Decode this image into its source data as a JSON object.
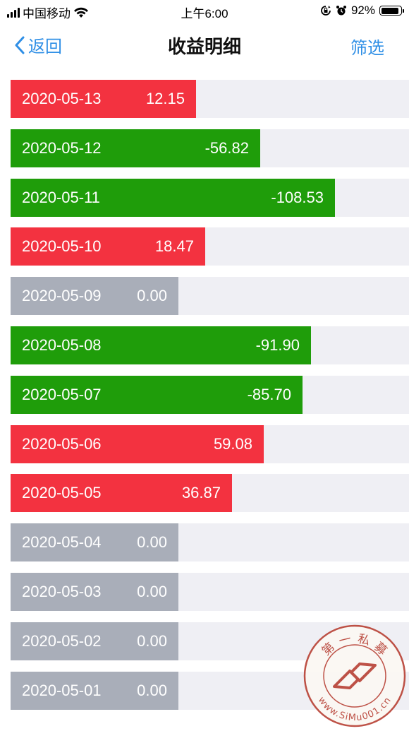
{
  "status": {
    "carrier": "中国移动",
    "time": "上午6:00",
    "battery": "92%",
    "battery_level": 0.92
  },
  "nav": {
    "back_label": "返回",
    "title": "收益明细",
    "filter_label": "筛选"
  },
  "colors": {
    "gain": "#f33240",
    "loss": "#1f9d0a",
    "zero": "#a9aeb9",
    "track": "#efeff4",
    "link": "#2f8fe6"
  },
  "records": [
    {
      "date": "2020-05-13",
      "value": "12.15"
    },
    {
      "date": "2020-05-12",
      "value": "-56.82"
    },
    {
      "date": "2020-05-11",
      "value": "-108.53"
    },
    {
      "date": "2020-05-10",
      "value": "18.47"
    },
    {
      "date": "2020-05-09",
      "value": "0.00"
    },
    {
      "date": "2020-05-08",
      "value": "-91.90"
    },
    {
      "date": "2020-05-07",
      "value": "-85.70"
    },
    {
      "date": "2020-05-06",
      "value": "59.08"
    },
    {
      "date": "2020-05-05",
      "value": "36.87"
    },
    {
      "date": "2020-05-04",
      "value": "0.00"
    },
    {
      "date": "2020-05-03",
      "value": "0.00"
    },
    {
      "date": "2020-05-02",
      "value": "0.00"
    },
    {
      "date": "2020-05-01",
      "value": "0.00"
    }
  ],
  "watermark": {
    "top_text": "第 一 私 募",
    "bottom_text": "www.SiMu001.cn"
  }
}
